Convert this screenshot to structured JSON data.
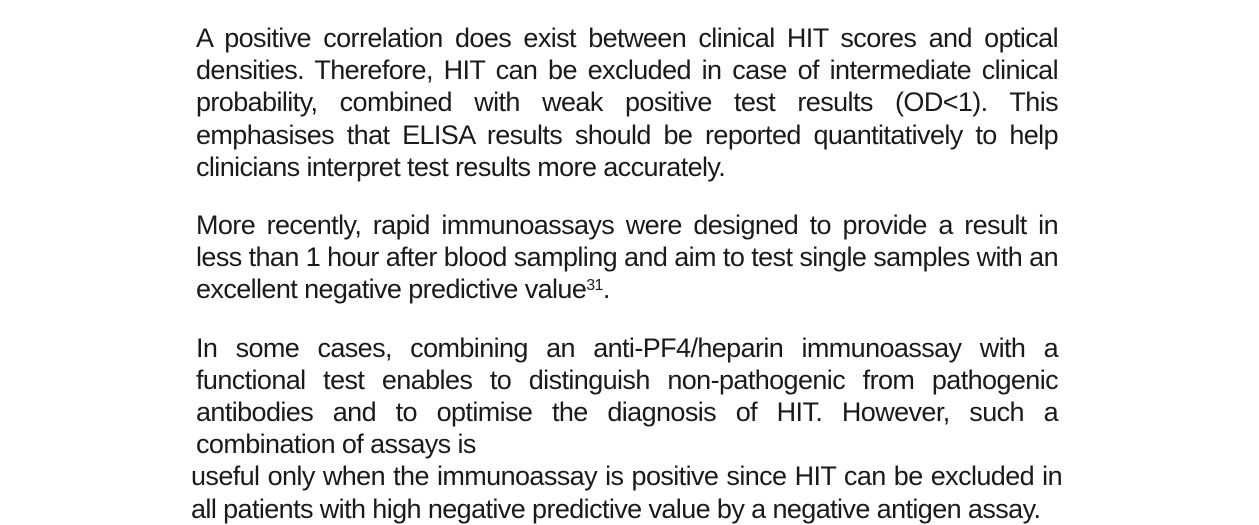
{
  "document": {
    "paragraphs": [
      {
        "text": "A positive correlation does exist between clinical HIT scores and optical densities. Therefore, HIT can be excluded in case of intermediate clinical probability, combined with weak positive test results (OD<1). This emphasises that ELISA results should be reported quantitatively to help clinicians interpret test results more accurately."
      },
      {
        "text": "More recently, rapid immunoassays were designed to provide a result in less than 1 hour after blood sampling and aim to test single samples with an excellent negative predictive value",
        "superscript": "31",
        "trailing": "."
      },
      {
        "text_a": "In some cases, combining an anti-PF4/heparin immunoassay with a functional test enables to distinguish non-pathogenic from pathogenic antibodies and to optimise the diagnosis of HIT. However, such a combination of assays is",
        "text_b": "useful only when the immunoassay is positive since HIT can be excluded in all patients with high negative predictive value by a negative antigen assay."
      }
    ]
  }
}
